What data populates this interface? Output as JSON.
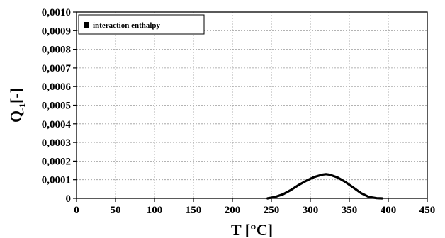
{
  "chart_data": {
    "type": "line",
    "title": "",
    "xlabel": "T [°C]",
    "ylabel_main": "Q",
    "ylabel_sub": "-1",
    "ylabel_unit": "[-]",
    "xlim": [
      0,
      450
    ],
    "ylim": [
      0,
      0.001
    ],
    "x_ticks": [
      0,
      50,
      100,
      150,
      200,
      250,
      300,
      350,
      400,
      450
    ],
    "x_tick_labels": [
      "0",
      "50",
      "100",
      "150",
      "200",
      "250",
      "300",
      "350",
      "400",
      "450"
    ],
    "y_ticks": [
      0,
      0.0001,
      0.0002,
      0.0003,
      0.0004,
      0.0005,
      0.0006,
      0.0007,
      0.0008,
      0.0009,
      0.001
    ],
    "y_tick_labels": [
      "0",
      "0,0001",
      "0,0002",
      "0,0003",
      "0,0004",
      "0,0005",
      "0,0006",
      "0,0007",
      "0,0008",
      "0,0009",
      "0,0010"
    ],
    "grid": true,
    "legend_position": "top-left",
    "series": [
      {
        "name": "interaction enthalpy",
        "color": "#000000",
        "x": [
          245,
          255,
          265,
          275,
          285,
          295,
          305,
          315,
          320,
          325,
          335,
          345,
          355,
          365,
          375,
          385,
          392
        ],
        "y": [
          0.0,
          8e-06,
          2.2e-05,
          4.5e-05,
          7.2e-05,
          9.5e-05,
          0.000115,
          0.000127,
          0.00013,
          0.000127,
          0.000112,
          8.8e-05,
          5.8e-05,
          2.8e-05,
          8e-06,
          1e-06,
          0.0
        ]
      }
    ]
  }
}
